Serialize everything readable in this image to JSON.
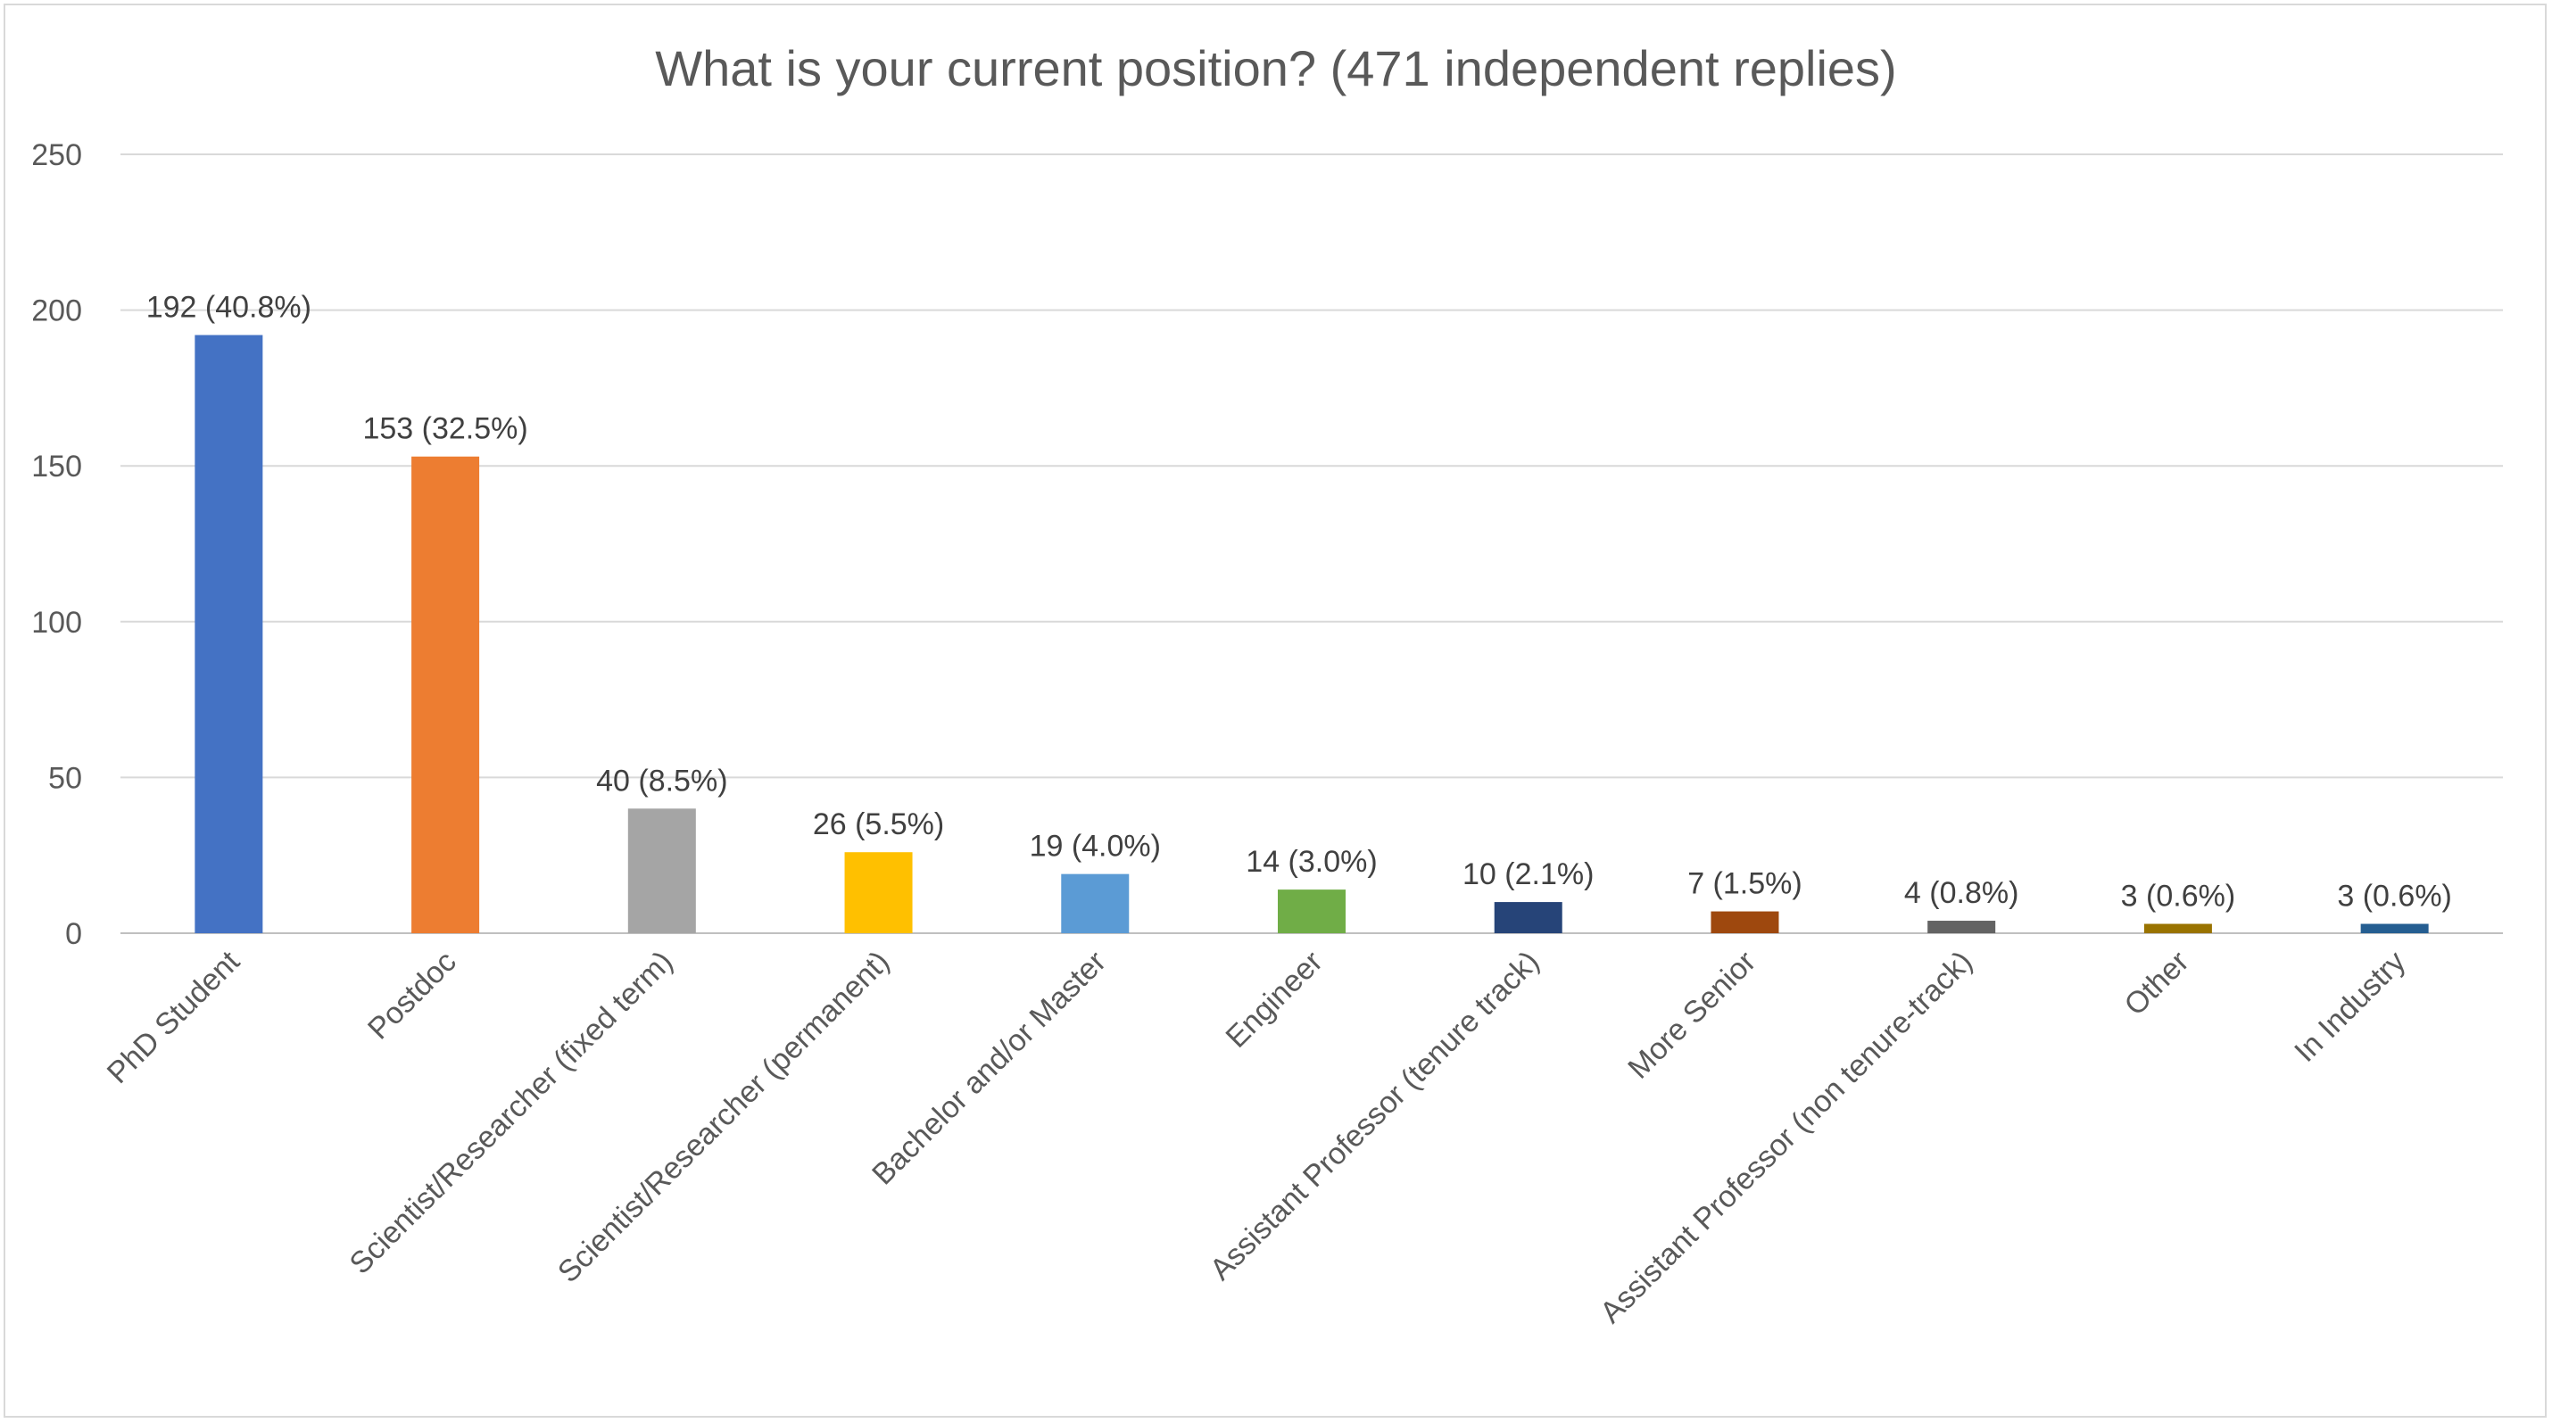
{
  "chart_data": {
    "type": "bar",
    "title": "What is your current position? (471 independent replies)",
    "categories": [
      "PhD Student",
      "Postdoc",
      "Scientist/Researcher (fixed term)",
      "Scientist/Researcher (permanent)",
      "Bachelor and/or Master",
      "Engineer",
      "Assistant Professor (tenure track)",
      "More Senior",
      "Assistant Professor (non tenure-track)",
      "Other",
      "In Industry"
    ],
    "values": [
      192,
      153,
      40,
      26,
      19,
      14,
      10,
      7,
      4,
      3,
      3
    ],
    "data_labels": [
      "192 (40.8%)",
      "153 (32.5%)",
      "40 (8.5%)",
      "26 (5.5%)",
      "19 (4.0%)",
      "14 (3.0%)",
      "10 (2.1%)",
      "7 (1.5%)",
      "4 (0.8%)",
      "3 (0.6%)",
      "3 (0.6%)"
    ],
    "colors": [
      "#4472c4",
      "#ed7d31",
      "#a5a5a5",
      "#ffc000",
      "#5b9bd5",
      "#70ad47",
      "#264478",
      "#9e480e",
      "#636363",
      "#997300",
      "#255e91"
    ],
    "ylim": [
      0,
      250
    ],
    "yticks": [
      "0",
      "50",
      "100",
      "150",
      "200",
      "250"
    ],
    "grid": true,
    "xlabel": "",
    "ylabel": ""
  }
}
